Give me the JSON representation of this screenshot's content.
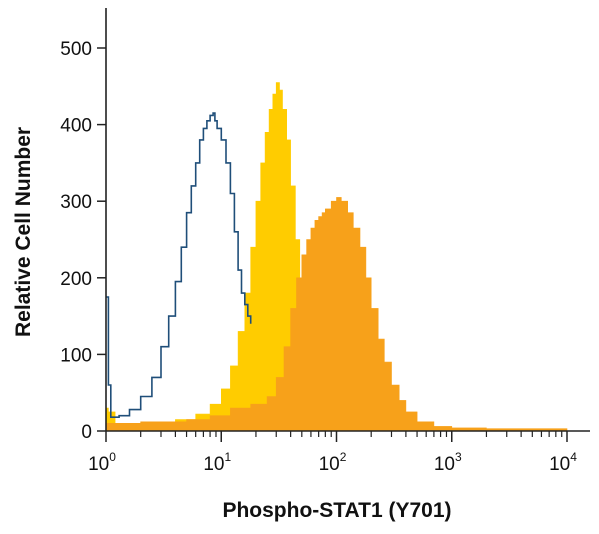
{
  "chart_data": {
    "type": "area",
    "title": "",
    "xlabel": "Phospho-STAT1 (Y701)",
    "ylabel": "Relative Cell Number",
    "x_scale": "log10",
    "xlim": [
      1,
      10000
    ],
    "ylim": [
      0,
      500
    ],
    "x_ticks": [
      {
        "base": "10",
        "exp": "0",
        "value": 1
      },
      {
        "base": "10",
        "exp": "1",
        "value": 10
      },
      {
        "base": "10",
        "exp": "2",
        "value": 100
      },
      {
        "base": "10",
        "exp": "3",
        "value": 1000
      },
      {
        "base": "10",
        "exp": "4",
        "value": 10000
      }
    ],
    "y_ticks": [
      "0",
      "100",
      "200",
      "300",
      "400",
      "500"
    ],
    "grid": false,
    "legend": "none",
    "series": [
      {
        "style": "outline",
        "color": "#1f4e79",
        "x": [
          1.0,
          1.05,
          1.1,
          1.3,
          1.6,
          2.0,
          2.5,
          3.0,
          3.5,
          4.0,
          4.5,
          5.0,
          5.5,
          6.0,
          6.5,
          7.0,
          7.5,
          8.0,
          8.5,
          8.8,
          9.2,
          10.0,
          11.0,
          12.0,
          13.0,
          14.0,
          15.0,
          16.0,
          17.0,
          18.0
        ],
        "y": [
          175,
          60,
          18,
          20,
          28,
          45,
          70,
          110,
          150,
          195,
          240,
          285,
          320,
          350,
          380,
          395,
          405,
          412,
          415,
          405,
          395,
          380,
          350,
          310,
          260,
          210,
          180,
          165,
          150,
          140
        ]
      },
      {
        "style": "filled",
        "color": "#ffcc00",
        "x": [
          1.0,
          1.05,
          1.2,
          2.0,
          4.0,
          6.0,
          8.0,
          10.0,
          12.0,
          14.0,
          16.0,
          18.0,
          20.0,
          22.0,
          24.0,
          26.0,
          28.0,
          30.0,
          32.0,
          34.0,
          37.0,
          40.0,
          44.0,
          48.0,
          52.0,
          56.0,
          60.0,
          70.0,
          80.0,
          100.0,
          150.0,
          300.0
        ],
        "y": [
          30,
          25,
          10,
          12,
          15,
          22,
          35,
          55,
          85,
          130,
          180,
          240,
          300,
          350,
          390,
          420,
          440,
          455,
          445,
          420,
          380,
          320,
          250,
          180,
          120,
          80,
          50,
          25,
          12,
          5,
          2,
          0
        ]
      },
      {
        "style": "filled",
        "color": "#f7a11a",
        "x": [
          1.0,
          2.0,
          5.0,
          8.0,
          12.0,
          18.0,
          25.0,
          30.0,
          35.0,
          40.0,
          45.0,
          50.0,
          55.0,
          60.0,
          65.0,
          70.0,
          75.0,
          80.0,
          90.0,
          100.0,
          110.0,
          125.0,
          140.0,
          160.0,
          180.0,
          200.0,
          230.0,
          260.0,
          300.0,
          350.0,
          400.0,
          500.0,
          700.0,
          1000.0,
          2000.0,
          5000.0,
          10000.0
        ],
        "y": [
          10,
          12,
          15,
          20,
          30,
          35,
          45,
          70,
          110,
          160,
          200,
          230,
          250,
          265,
          275,
          280,
          285,
          290,
          300,
          305,
          300,
          285,
          265,
          240,
          200,
          160,
          120,
          90,
          60,
          40,
          25,
          12,
          6,
          4,
          3,
          3,
          2
        ]
      }
    ]
  }
}
